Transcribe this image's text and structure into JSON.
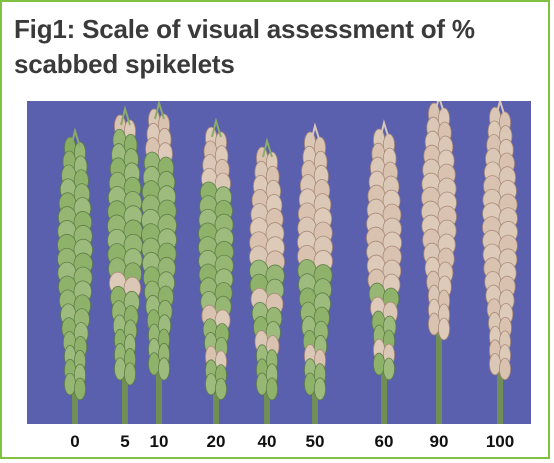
{
  "title": "Fig1: Scale of visual assessment of % scabbed spikelets",
  "colors": {
    "border": "#7fc241",
    "background_photo": "#5a5fae",
    "healthy_spikelet": "#8fb26a",
    "scabbed_spikelet": "#d9c3b0"
  },
  "severity_scale": [
    {
      "label": "0",
      "scabbed_fraction": 0.0
    },
    {
      "label": "5",
      "scabbed_fraction": 0.05
    },
    {
      "label": "10",
      "scabbed_fraction": 0.1
    },
    {
      "label": "20",
      "scabbed_fraction": 0.2
    },
    {
      "label": "40",
      "scabbed_fraction": 0.4
    },
    {
      "label": "50",
      "scabbed_fraction": 0.5
    },
    {
      "label": "60",
      "scabbed_fraction": 0.6
    },
    {
      "label": "90",
      "scabbed_fraction": 0.9
    },
    {
      "label": "100",
      "scabbed_fraction": 1.0
    }
  ]
}
